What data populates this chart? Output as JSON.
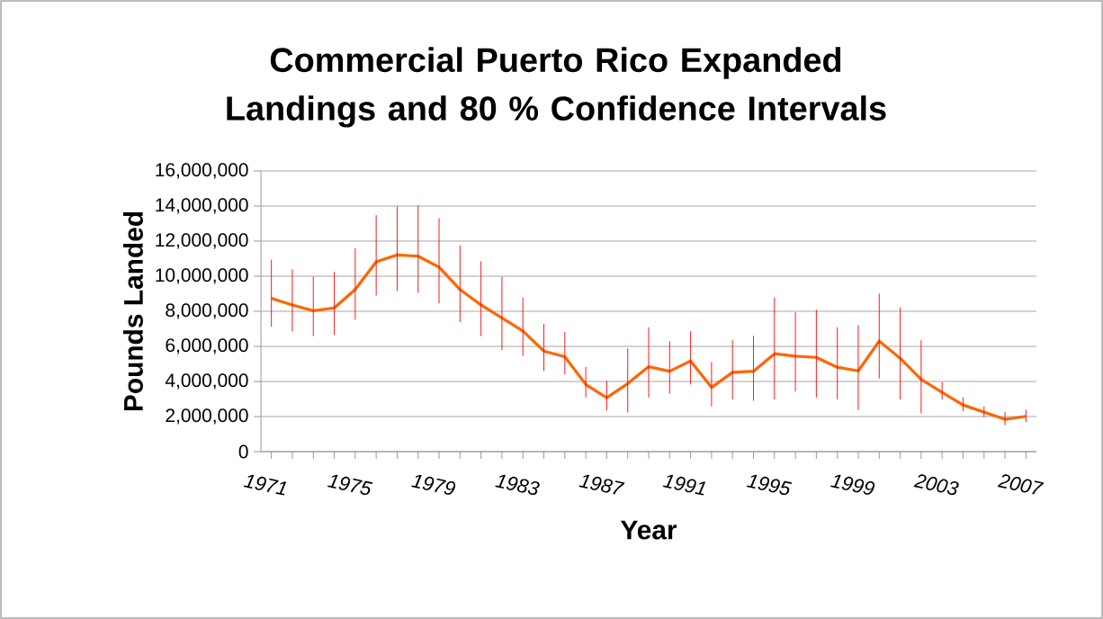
{
  "chart_data": {
    "type": "line",
    "title": "Commercial Puerto Rico Expanded Landings and 80 % Confidence Intervals",
    "xlabel": "Year",
    "ylabel": "Pounds Landed",
    "categories": [
      "1971",
      null,
      null,
      null,
      "1975",
      null,
      null,
      null,
      "1979",
      null,
      null,
      null,
      "1983",
      null,
      null,
      null,
      "1987",
      null,
      null,
      null,
      "1991",
      null,
      null,
      null,
      "1995",
      null,
      null,
      null,
      "1999",
      null,
      null,
      null,
      "2003",
      null,
      null,
      null,
      "2007"
    ],
    "series": [
      {
        "color": "#ff6600",
        "values": [
          8740000,
          8360000,
          8030000,
          8190000,
          9240000,
          10820000,
          11210000,
          11140000,
          10520000,
          9240000,
          8360000,
          7620000,
          6880000,
          5730000,
          5410000,
          3830000,
          3070000,
          3880000,
          4840000,
          4580000,
          5170000,
          3660000,
          4520000,
          4580000,
          5580000,
          5440000,
          5370000,
          4810000,
          4600000,
          6300000,
          5320000,
          4120000,
          3380000,
          2660000,
          2250000,
          1840000,
          2010000
        ],
        "errors": [
          [
            7120000,
            10940000
          ],
          [
            6850000,
            10390000
          ],
          [
            6590000,
            9970000
          ],
          [
            6660000,
            10250000
          ],
          [
            7520000,
            11590000
          ],
          [
            8890000,
            13480000
          ],
          [
            9150000,
            13990000
          ],
          [
            9050000,
            14030000
          ],
          [
            8450000,
            13300000
          ],
          [
            7380000,
            11760000
          ],
          [
            6590000,
            10850000
          ],
          [
            5800000,
            9970000
          ],
          [
            5460000,
            8790000
          ],
          [
            4600000,
            7280000
          ],
          [
            4410000,
            6820000
          ],
          [
            3090000,
            4820000
          ],
          [
            2350000,
            4030000
          ],
          [
            2230000,
            5890000
          ],
          [
            3090000,
            7090000
          ],
          [
            3300000,
            6300000
          ],
          [
            3830000,
            6870000
          ],
          [
            2580000,
            5100000
          ],
          [
            2970000,
            6350000
          ],
          [
            2900000,
            6610000
          ],
          [
            2970000,
            8790000
          ],
          [
            3420000,
            7950000
          ],
          [
            3090000,
            8090000
          ],
          [
            2970000,
            7090000
          ],
          [
            2370000,
            7210000
          ],
          [
            4170000,
            9010000
          ],
          [
            2970000,
            8210000
          ],
          [
            2180000,
            6350000
          ],
          [
            2970000,
            3950000
          ],
          [
            2320000,
            3090000
          ],
          [
            1970000,
            2580000
          ],
          [
            1510000,
            2270000
          ],
          [
            1680000,
            2390000
          ]
        ]
      }
    ],
    "ylim": [
      0,
      16000000
    ],
    "yticks": [
      0,
      {
        "value": 2000000,
        "label": "2,000,000"
      },
      {
        "value": 4000000,
        "label": "4,000,000"
      },
      {
        "value": 6000000,
        "label": "6,000,000"
      },
      {
        "value": 8000000,
        "label": "8,000,000"
      },
      {
        "value": 10000000,
        "label": "10,000,000"
      },
      {
        "value": 12000000,
        "label": "12,000,000"
      },
      {
        "value": 14000000,
        "label": "14,000,000"
      },
      {
        "value": 16000000,
        "label": "16,000,000"
      }
    ],
    "grid": "y",
    "legend": false
  }
}
